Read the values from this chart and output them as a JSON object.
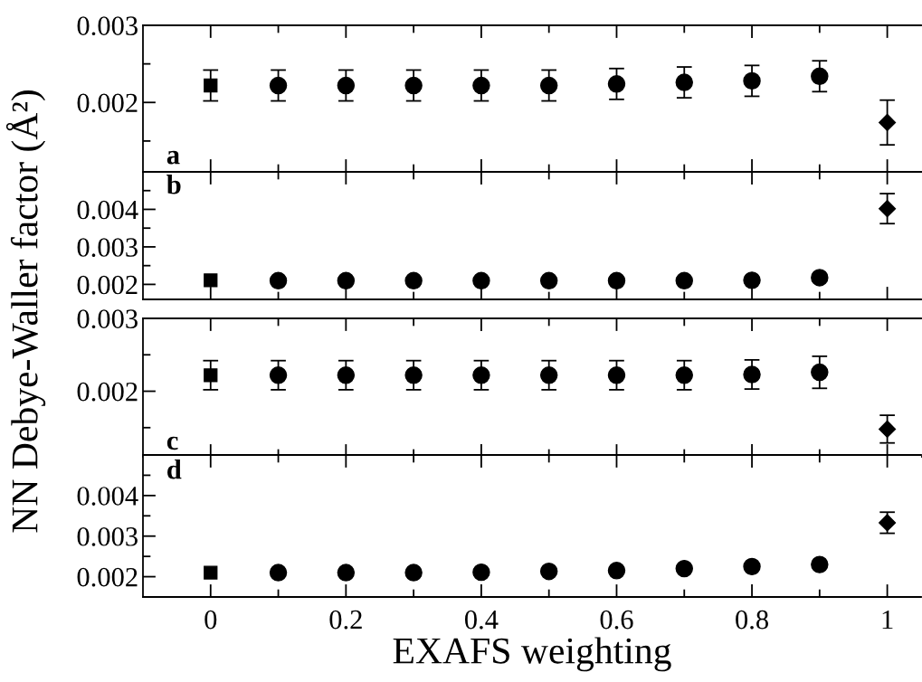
{
  "chart_data": [
    {
      "type": "scatter",
      "ylabel": "NN Debye-Waller factor (Å²)",
      "annotations": [
        "a"
      ],
      "xlim": [
        -0.1,
        1.05
      ],
      "ylim": [
        0.0011,
        0.003
      ],
      "tick_labels": "y",
      "xticks": [
        0,
        {
          "value": 0.1,
          "label": null
        },
        0.2,
        {
          "value": 0.3,
          "label": null
        },
        0.4,
        {
          "value": 0.5,
          "label": null
        },
        0.6,
        {
          "value": 0.7,
          "label": null
        },
        0.8,
        {
          "value": 0.9,
          "label": null
        },
        1
      ],
      "yticks": [
        {
          "value": 0.0015,
          "label": null
        },
        0.002,
        {
          "value": 0.0025,
          "label": null
        },
        0.003
      ],
      "series": [
        {
          "color": "#000000",
          "marker": "square",
          "x": [
            0
          ],
          "values": [
            0.00222
          ],
          "errors": [
            0.0002
          ]
        },
        {
          "color": "#000000",
          "marker": "circle",
          "x": [
            0.1,
            0.2,
            0.3,
            0.4,
            0.5,
            0.6,
            0.7,
            0.8,
            0.9
          ],
          "values": [
            0.00222,
            0.00222,
            0.00222,
            0.00222,
            0.00222,
            0.00224,
            0.00226,
            0.00228,
            0.00234
          ],
          "errors": [
            0.0002,
            0.0002,
            0.0002,
            0.0002,
            0.0002,
            0.0002,
            0.0002,
            0.0002,
            0.0002
          ]
        },
        {
          "color": "#000000",
          "marker": "diamond",
          "x": [
            1
          ],
          "values": [
            0.00174
          ],
          "errors": [
            0.00029
          ]
        }
      ]
    },
    {
      "type": "scatter",
      "annotations": [
        "b"
      ],
      "xlim": [
        -0.1,
        1.05
      ],
      "ylim": [
        0.0016,
        0.005
      ],
      "tick_labels": "y",
      "xticks": [
        0,
        {
          "value": 0.1,
          "label": null
        },
        0.2,
        {
          "value": 0.3,
          "label": null
        },
        0.4,
        {
          "value": 0.5,
          "label": null
        },
        0.6,
        {
          "value": 0.7,
          "label": null
        },
        0.8,
        {
          "value": 0.9,
          "label": null
        },
        1
      ],
      "yticks": [
        0.002,
        {
          "value": 0.0025,
          "label": null
        },
        0.003,
        {
          "value": 0.0035,
          "label": null
        },
        0.004,
        {
          "value": 0.0045,
          "label": null
        }
      ],
      "series": [
        {
          "color": "#000000",
          "marker": "square",
          "x": [
            0
          ],
          "values": [
            0.00211
          ]
        },
        {
          "color": "#000000",
          "marker": "circle",
          "x": [
            0.1,
            0.2,
            0.3,
            0.4,
            0.5,
            0.6,
            0.7,
            0.8,
            0.9
          ],
          "values": [
            0.0021,
            0.0021,
            0.0021,
            0.0021,
            0.0021,
            0.0021,
            0.0021,
            0.00211,
            0.00218
          ]
        },
        {
          "color": "#000000",
          "marker": "diamond",
          "x": [
            1
          ],
          "values": [
            0.00402
          ],
          "errors": [
            0.0004
          ]
        }
      ]
    },
    {
      "type": "scatter",
      "annotations": [
        "c"
      ],
      "xlim": [
        -0.1,
        1.05
      ],
      "ylim": [
        0.0011,
        0.003
      ],
      "tick_labels": "y",
      "xticks": [
        0,
        {
          "value": 0.1,
          "label": null
        },
        0.2,
        {
          "value": 0.3,
          "label": null
        },
        0.4,
        {
          "value": 0.5,
          "label": null
        },
        0.6,
        {
          "value": 0.7,
          "label": null
        },
        0.8,
        {
          "value": 0.9,
          "label": null
        },
        1
      ],
      "yticks": [
        {
          "value": 0.0015,
          "label": null
        },
        0.002,
        {
          "value": 0.0025,
          "label": null
        },
        0.003
      ],
      "series": [
        {
          "color": "#000000",
          "marker": "square",
          "x": [
            0
          ],
          "values": [
            0.00222
          ],
          "errors": [
            0.0002
          ]
        },
        {
          "color": "#000000",
          "marker": "circle",
          "x": [
            0.1,
            0.2,
            0.3,
            0.4,
            0.5,
            0.6,
            0.7,
            0.8,
            0.9
          ],
          "values": [
            0.00222,
            0.00222,
            0.00222,
            0.00222,
            0.00222,
            0.00222,
            0.00222,
            0.00223,
            0.00226
          ],
          "errors": [
            0.0002,
            0.0002,
            0.0002,
            0.0002,
            0.0002,
            0.0002,
            0.0002,
            0.0002,
            0.00022
          ]
        },
        {
          "color": "#000000",
          "marker": "diamond",
          "x": [
            1
          ],
          "values": [
            0.00148
          ],
          "errors": [
            0.00019
          ]
        }
      ]
    },
    {
      "type": "scatter",
      "xlabel": "EXAFS weighting",
      "annotations": [
        "d"
      ],
      "xlim": [
        -0.1,
        1.05
      ],
      "ylim": [
        0.0015,
        0.005
      ],
      "xticks": [
        0,
        {
          "value": 0.1,
          "label": null
        },
        0.2,
        {
          "value": 0.3,
          "label": null
        },
        0.4,
        {
          "value": 0.5,
          "label": null
        },
        0.6,
        {
          "value": 0.7,
          "label": null
        },
        0.8,
        {
          "value": 0.9,
          "label": null
        },
        1
      ],
      "yticks": [
        0.002,
        {
          "value": 0.0025,
          "label": null
        },
        0.003,
        {
          "value": 0.0035,
          "label": null
        },
        0.004,
        {
          "value": 0.0045,
          "label": null
        }
      ],
      "series": [
        {
          "color": "#000000",
          "marker": "square",
          "x": [
            0
          ],
          "values": [
            0.0021
          ]
        },
        {
          "color": "#000000",
          "marker": "circle",
          "x": [
            0.1,
            0.2,
            0.3,
            0.4,
            0.5,
            0.6,
            0.7,
            0.8,
            0.9
          ],
          "values": [
            0.0021,
            0.0021,
            0.0021,
            0.00211,
            0.00213,
            0.00215,
            0.0022,
            0.00225,
            0.0023
          ]
        },
        {
          "color": "#000000",
          "marker": "diamond",
          "x": [
            1
          ],
          "values": [
            0.00333
          ],
          "errors": [
            0.00026
          ]
        }
      ]
    }
  ]
}
